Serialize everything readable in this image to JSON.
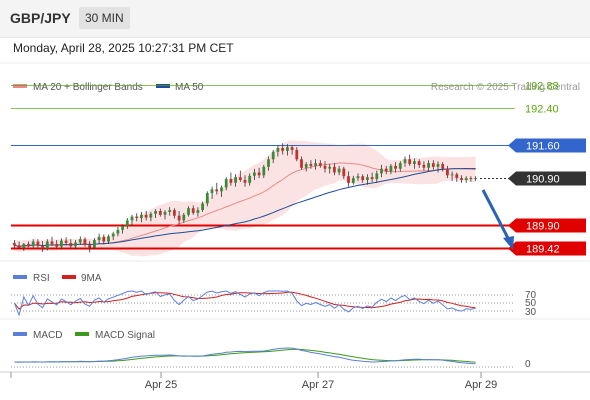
{
  "header": {
    "pair": "GBP/JPY",
    "timeframe": "30 MIN",
    "timestamp": "Monday, April 28, 2025 10:27:31 PM CET"
  },
  "legend": {
    "ma20": "MA 20 + Bollinger Bands",
    "ma50": "MA 50",
    "credit": "Research © 2025 Trading Central",
    "rsi": "RSI",
    "rsi_ma": "9MA",
    "macd": "MACD",
    "macd_signal": "MACD Signal"
  },
  "colors": {
    "green_level": "#5aa70f",
    "blue_level": "#3366cc",
    "red_level": "#e00000",
    "current": "#333333",
    "ma20": "#e88a8a",
    "ma50": "#1f4e99",
    "band": "#f9cccc",
    "candle_up": "#3a8a3a",
    "candle_down": "#c23030",
    "arrow": "#2a62b5",
    "rsi": "#5b7fd8",
    "rsi_ma": "#d02020",
    "macd": "#5b7fd8",
    "macd_signal": "#3a9a1a"
  },
  "price_levels": [
    {
      "label": "192.88",
      "value": 192.88,
      "kind": "target"
    },
    {
      "label": "192.40",
      "value": 192.4,
      "kind": "target"
    },
    {
      "label": "191.60",
      "value": 191.6,
      "kind": "pivot"
    },
    {
      "label": "190.90",
      "value": 190.9,
      "kind": "current"
    },
    {
      "label": "189.90",
      "value": 189.9,
      "kind": "support"
    },
    {
      "label": "189.42",
      "value": 189.42,
      "kind": "support"
    }
  ],
  "chart_data": {
    "type": "candlestick",
    "price_range": [
      189.2,
      193.2
    ],
    "candles": [
      [
        189.52,
        189.58,
        189.42,
        189.47
      ],
      [
        189.47,
        189.55,
        189.38,
        189.42
      ],
      [
        189.42,
        189.52,
        189.35,
        189.5
      ],
      [
        189.5,
        189.55,
        189.43,
        189.45
      ],
      [
        189.45,
        189.6,
        189.4,
        189.55
      ],
      [
        189.55,
        189.6,
        189.41,
        189.46
      ],
      [
        189.46,
        189.56,
        189.33,
        189.4
      ],
      [
        189.4,
        189.6,
        189.36,
        189.55
      ],
      [
        189.55,
        189.65,
        189.46,
        189.5
      ],
      [
        189.5,
        189.58,
        189.4,
        189.44
      ],
      [
        189.44,
        189.62,
        189.39,
        189.57
      ],
      [
        189.57,
        189.64,
        189.47,
        189.52
      ],
      [
        189.52,
        189.6,
        189.4,
        189.45
      ],
      [
        189.45,
        189.58,
        189.38,
        189.53
      ],
      [
        189.53,
        189.66,
        189.48,
        189.6
      ],
      [
        189.6,
        189.64,
        189.44,
        189.48
      ],
      [
        189.48,
        189.56,
        189.32,
        189.42
      ],
      [
        189.42,
        189.62,
        189.38,
        189.58
      ],
      [
        189.58,
        189.72,
        189.5,
        189.65
      ],
      [
        189.65,
        189.7,
        189.49,
        189.55
      ],
      [
        189.55,
        189.7,
        189.5,
        189.66
      ],
      [
        189.66,
        189.76,
        189.58,
        189.72
      ],
      [
        189.72,
        189.86,
        189.66,
        189.8
      ],
      [
        189.8,
        189.92,
        189.72,
        189.88
      ],
      [
        189.88,
        190.05,
        189.82,
        190.0
      ],
      [
        190.0,
        190.12,
        189.9,
        190.08
      ],
      [
        190.08,
        190.15,
        189.98,
        190.05
      ],
      [
        190.05,
        190.18,
        189.96,
        190.12
      ],
      [
        190.12,
        190.2,
        190.0,
        190.06
      ],
      [
        190.06,
        190.18,
        189.98,
        190.14
      ],
      [
        190.14,
        190.24,
        190.05,
        190.2
      ],
      [
        190.2,
        190.25,
        190.08,
        190.12
      ],
      [
        190.12,
        190.22,
        190.02,
        190.18
      ],
      [
        190.18,
        190.28,
        190.1,
        190.22
      ],
      [
        190.22,
        190.26,
        190.04,
        190.1
      ],
      [
        190.1,
        190.2,
        189.92,
        190.0
      ],
      [
        190.0,
        190.16,
        189.95,
        190.12
      ],
      [
        190.12,
        190.3,
        190.08,
        190.26
      ],
      [
        190.26,
        190.32,
        190.12,
        190.16
      ],
      [
        190.16,
        190.28,
        190.08,
        190.22
      ],
      [
        190.22,
        190.4,
        190.18,
        190.36
      ],
      [
        190.36,
        190.62,
        190.3,
        190.58
      ],
      [
        190.58,
        190.72,
        190.46,
        190.66
      ],
      [
        190.66,
        190.8,
        190.55,
        190.62
      ],
      [
        190.62,
        190.74,
        190.5,
        190.7
      ],
      [
        190.7,
        190.92,
        190.64,
        190.88
      ],
      [
        190.88,
        191.02,
        190.74,
        190.8
      ],
      [
        190.8,
        190.98,
        190.72,
        190.92
      ],
      [
        190.92,
        191.06,
        190.82,
        190.86
      ],
      [
        190.86,
        190.96,
        190.72,
        190.8
      ],
      [
        190.8,
        191.0,
        190.74,
        190.95
      ],
      [
        190.95,
        191.1,
        190.86,
        191.02
      ],
      [
        191.02,
        191.12,
        190.9,
        190.96
      ],
      [
        190.96,
        191.18,
        190.9,
        191.14
      ],
      [
        191.14,
        191.36,
        191.06,
        191.3
      ],
      [
        191.3,
        191.5,
        191.22,
        191.46
      ],
      [
        191.46,
        191.6,
        191.36,
        191.54
      ],
      [
        191.54,
        191.64,
        191.4,
        191.48
      ],
      [
        191.48,
        191.62,
        191.38,
        191.56
      ],
      [
        191.56,
        191.6,
        191.4,
        191.5
      ],
      [
        191.5,
        191.56,
        191.26,
        191.3
      ],
      [
        191.3,
        191.36,
        191.08,
        191.12
      ],
      [
        191.12,
        191.24,
        191.04,
        191.2
      ],
      [
        191.2,
        191.28,
        191.1,
        191.16
      ],
      [
        191.16,
        191.3,
        191.08,
        191.22
      ],
      [
        191.22,
        191.28,
        191.12,
        191.16
      ],
      [
        191.16,
        191.26,
        191.02,
        191.1
      ],
      [
        191.1,
        191.2,
        191.0,
        191.14
      ],
      [
        191.14,
        191.22,
        190.96,
        191.02
      ],
      [
        191.02,
        191.16,
        190.96,
        191.1
      ],
      [
        191.1,
        191.14,
        190.88,
        190.94
      ],
      [
        190.94,
        191.04,
        190.72,
        190.8
      ],
      [
        190.8,
        190.95,
        190.76,
        190.9
      ],
      [
        190.9,
        191.0,
        190.84,
        190.94
      ],
      [
        190.94,
        190.98,
        190.8,
        190.86
      ],
      [
        190.86,
        190.98,
        190.76,
        190.92
      ],
      [
        190.92,
        191.02,
        190.82,
        190.88
      ],
      [
        190.88,
        191.06,
        190.8,
        191.0
      ],
      [
        191.0,
        191.18,
        190.92,
        191.1
      ],
      [
        191.1,
        191.16,
        190.98,
        191.04
      ],
      [
        191.04,
        191.2,
        190.98,
        191.16
      ],
      [
        191.16,
        191.24,
        191.02,
        191.1
      ],
      [
        191.1,
        191.26,
        191.04,
        191.22
      ],
      [
        191.22,
        191.36,
        191.14,
        191.3
      ],
      [
        191.3,
        191.4,
        191.16,
        191.2
      ],
      [
        191.2,
        191.32,
        191.1,
        191.26
      ],
      [
        191.26,
        191.3,
        191.12,
        191.18
      ],
      [
        191.18,
        191.26,
        191.06,
        191.12
      ],
      [
        191.12,
        191.28,
        191.04,
        191.22
      ],
      [
        191.22,
        191.28,
        191.08,
        191.14
      ],
      [
        191.14,
        191.26,
        191.02,
        191.2
      ],
      [
        191.2,
        191.24,
        191.04,
        191.1
      ],
      [
        191.1,
        191.16,
        190.9,
        190.96
      ],
      [
        190.96,
        191.04,
        190.84,
        190.98
      ],
      [
        190.98,
        191.02,
        190.82,
        190.9
      ],
      [
        190.9,
        190.96,
        190.8,
        190.86
      ],
      [
        190.86,
        190.94,
        190.8,
        190.9
      ],
      [
        190.9,
        190.94,
        190.82,
        190.88
      ],
      [
        190.88,
        190.94,
        190.84,
        190.9
      ]
    ],
    "rsi_levels": [
      "70",
      "50",
      "30"
    ],
    "macd_level": "0",
    "x_labels": [
      "Apr 25",
      "Apr 27",
      "Apr 29"
    ]
  }
}
